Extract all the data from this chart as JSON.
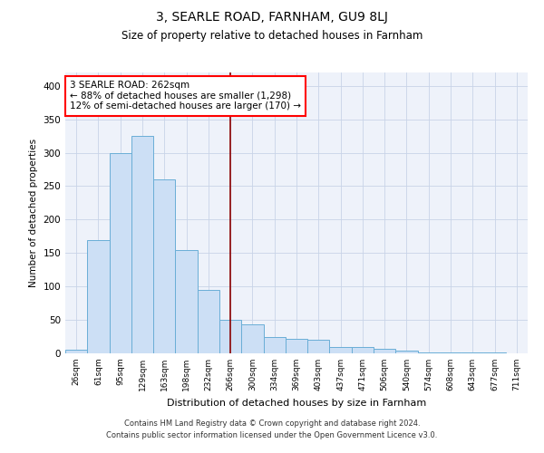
{
  "title": "3, SEARLE ROAD, FARNHAM, GU9 8LJ",
  "subtitle": "Size of property relative to detached houses in Farnham",
  "xlabel": "Distribution of detached houses by size in Farnham",
  "ylabel": "Number of detached properties",
  "footer_line1": "Contains HM Land Registry data © Crown copyright and database right 2024.",
  "footer_line2": "Contains public sector information licensed under the Open Government Licence v3.0.",
  "bar_labels": [
    "26sqm",
    "61sqm",
    "95sqm",
    "129sqm",
    "163sqm",
    "198sqm",
    "232sqm",
    "266sqm",
    "300sqm",
    "334sqm",
    "369sqm",
    "403sqm",
    "437sqm",
    "471sqm",
    "506sqm",
    "540sqm",
    "574sqm",
    "608sqm",
    "643sqm",
    "677sqm",
    "711sqm"
  ],
  "bar_values": [
    5,
    170,
    300,
    325,
    260,
    155,
    95,
    50,
    43,
    25,
    22,
    20,
    10,
    10,
    7,
    4,
    2,
    2,
    1,
    1,
    0.5
  ],
  "bar_color": "#ccdff5",
  "bar_edge_color": "#6aaed6",
  "grid_color": "#c8d4e8",
  "background_color": "#eef2fa",
  "annotation_line1": "3 SEARLE ROAD: 262sqm",
  "annotation_line2": "← 88% of detached houses are smaller (1,298)",
  "annotation_line3": "12% of semi-detached houses are larger (170) →",
  "marker_bar_index": 7,
  "ylim": [
    0,
    420
  ],
  "yticks": [
    0,
    50,
    100,
    150,
    200,
    250,
    300,
    350,
    400
  ]
}
